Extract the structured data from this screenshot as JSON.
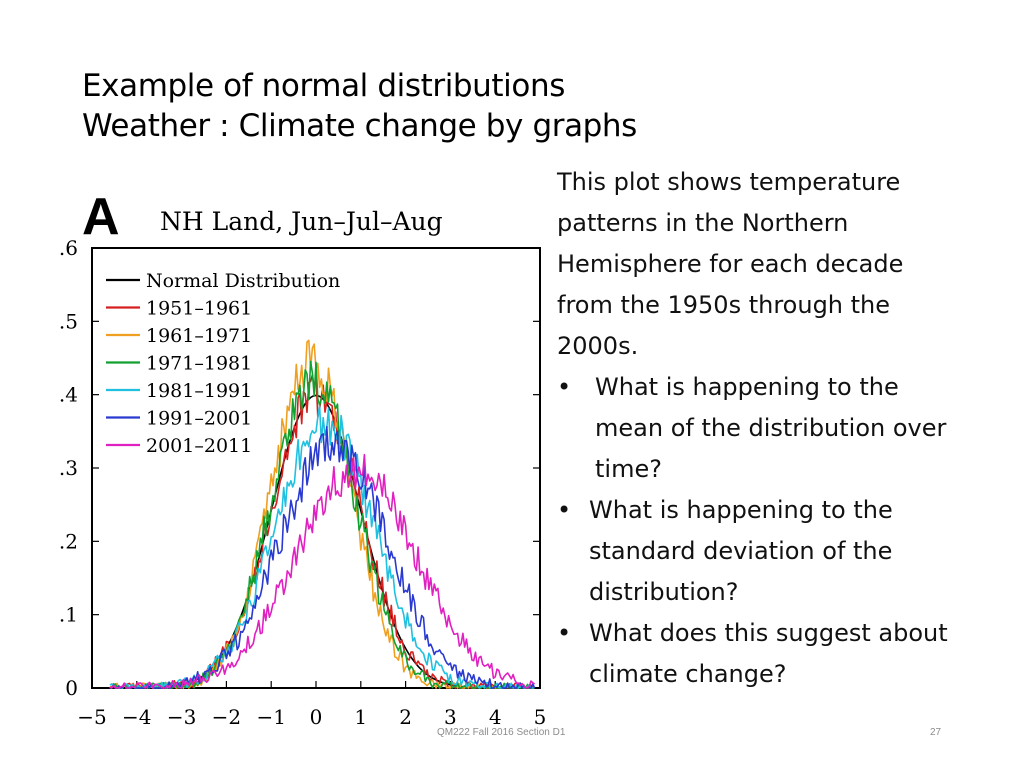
{
  "slide": {
    "title_line1": "Example of normal distributions",
    "title_line2": "Weather : Climate change by graphs",
    "paragraph": "This plot shows temperature patterns in the Northern Hemisphere for each decade from the 1950s through the 2000s.",
    "bullet_symbol": "•",
    "bullets": [
      "What is happening to the mean of the distribution over time?",
      "What is happening to the standard deviation of the distribution?",
      "What does this suggest about climate change?"
    ],
    "footer": "QM222 Fall 2016 Section D1",
    "page_number": "27"
  },
  "chart_data": {
    "type": "line",
    "panel_letter": "A",
    "title": "NH Land, Jun–Jul–Aug",
    "xlabel": "",
    "ylabel": "",
    "xlim": [
      -5,
      5
    ],
    "ylim": [
      0,
      0.6
    ],
    "x_ticks": [
      -5,
      -4,
      -3,
      -2,
      -1,
      0,
      1,
      2,
      3,
      4,
      5
    ],
    "x_tick_labels": [
      "−5",
      "−4",
      "−3",
      "−2",
      "−1",
      "0",
      "1",
      "2",
      "3",
      "4",
      "5"
    ],
    "y_ticks": [
      0,
      0.1,
      0.2,
      0.3,
      0.4,
      0.5,
      0.6
    ],
    "y_tick_labels": [
      "0",
      ".1",
      ".2",
      ".3",
      ".4",
      ".5",
      ".6"
    ],
    "grid": false,
    "legend_position": "top-left",
    "series": [
      {
        "name": "Normal Distribution",
        "color": "#000000",
        "mean": 0.0,
        "sd": 1.0,
        "noise": 0.0,
        "values": [
          [
            -4.5,
            0.0
          ],
          [
            -4.0,
            0.0
          ],
          [
            -3.5,
            0.0
          ],
          [
            -3.0,
            0.0
          ],
          [
            -2.5,
            0.02
          ],
          [
            -2.0,
            0.05
          ],
          [
            -1.5,
            0.13
          ],
          [
            -1.0,
            0.24
          ],
          [
            -0.5,
            0.35
          ],
          [
            0.0,
            0.4
          ],
          [
            0.5,
            0.35
          ],
          [
            1.0,
            0.24
          ],
          [
            1.5,
            0.13
          ],
          [
            2.0,
            0.05
          ],
          [
            2.5,
            0.02
          ],
          [
            3.0,
            0.0
          ],
          [
            3.5,
            0.0
          ],
          [
            4.0,
            0.0
          ],
          [
            4.5,
            0.0
          ]
        ]
      },
      {
        "name": "1951–1961",
        "color": "#d62020",
        "mean": 0.0,
        "sd": 1.0,
        "noise": 0.03,
        "values": [
          [
            -4.5,
            0.0
          ],
          [
            -4.0,
            0.0
          ],
          [
            -3.5,
            0.0
          ],
          [
            -3.0,
            0.01
          ],
          [
            -2.5,
            0.02
          ],
          [
            -2.0,
            0.06
          ],
          [
            -1.5,
            0.13
          ],
          [
            -1.0,
            0.25
          ],
          [
            -0.5,
            0.34
          ],
          [
            0.0,
            0.42
          ],
          [
            0.5,
            0.34
          ],
          [
            1.0,
            0.23
          ],
          [
            1.5,
            0.13
          ],
          [
            2.0,
            0.05
          ],
          [
            2.5,
            0.02
          ],
          [
            3.0,
            0.0
          ],
          [
            3.5,
            0.0
          ],
          [
            4.0,
            0.0
          ],
          [
            4.5,
            0.0
          ]
        ]
      },
      {
        "name": "1961–1971",
        "color": "#f0a020",
        "mean": -0.1,
        "sd": 0.9,
        "noise": 0.03,
        "values": [
          [
            -4.5,
            0.0
          ],
          [
            -4.0,
            0.0
          ],
          [
            -3.5,
            0.0
          ],
          [
            -3.0,
            0.0
          ],
          [
            -2.5,
            0.01
          ],
          [
            -2.0,
            0.05
          ],
          [
            -1.5,
            0.15
          ],
          [
            -1.0,
            0.27
          ],
          [
            -0.5,
            0.41
          ],
          [
            0.0,
            0.44
          ],
          [
            0.5,
            0.34
          ],
          [
            1.0,
            0.2
          ],
          [
            1.5,
            0.09
          ],
          [
            2.0,
            0.03
          ],
          [
            2.5,
            0.01
          ],
          [
            3.0,
            0.0
          ],
          [
            3.5,
            0.0
          ],
          [
            4.0,
            0.0
          ],
          [
            4.5,
            0.0
          ]
        ]
      },
      {
        "name": "1971–1981",
        "color": "#12a030",
        "mean": -0.05,
        "sd": 0.95,
        "noise": 0.03,
        "values": [
          [
            -4.5,
            0.0
          ],
          [
            -4.0,
            0.0
          ],
          [
            -3.5,
            0.0
          ],
          [
            -3.0,
            0.0
          ],
          [
            -2.5,
            0.02
          ],
          [
            -2.0,
            0.06
          ],
          [
            -1.5,
            0.15
          ],
          [
            -1.0,
            0.27
          ],
          [
            -0.5,
            0.37
          ],
          [
            0.0,
            0.42
          ],
          [
            0.5,
            0.34
          ],
          [
            1.0,
            0.22
          ],
          [
            1.5,
            0.11
          ],
          [
            2.0,
            0.04
          ],
          [
            2.5,
            0.01
          ],
          [
            3.0,
            0.0
          ],
          [
            3.5,
            0.0
          ],
          [
            4.0,
            0.0
          ],
          [
            4.5,
            0.0
          ]
        ]
      },
      {
        "name": "1981–1991",
        "color": "#20c0e0",
        "mean": 0.2,
        "sd": 1.1,
        "noise": 0.03,
        "values": [
          [
            -4.5,
            0.0
          ],
          [
            -4.0,
            0.0
          ],
          [
            -3.5,
            0.0
          ],
          [
            -3.0,
            0.01
          ],
          [
            -2.5,
            0.02
          ],
          [
            -2.0,
            0.05
          ],
          [
            -1.5,
            0.11
          ],
          [
            -1.0,
            0.2
          ],
          [
            -0.5,
            0.3
          ],
          [
            0.0,
            0.36
          ],
          [
            0.5,
            0.35
          ],
          [
            1.0,
            0.27
          ],
          [
            1.5,
            0.17
          ],
          [
            2.0,
            0.09
          ],
          [
            2.5,
            0.04
          ],
          [
            3.0,
            0.01
          ],
          [
            3.5,
            0.0
          ],
          [
            4.0,
            0.0
          ],
          [
            4.5,
            0.0
          ]
        ]
      },
      {
        "name": "1991–2001",
        "color": "#2a3ad0",
        "mean": 0.4,
        "sd": 1.2,
        "noise": 0.03,
        "values": [
          [
            -4.5,
            0.0
          ],
          [
            -4.0,
            0.0
          ],
          [
            -3.5,
            0.0
          ],
          [
            -3.0,
            0.01
          ],
          [
            -2.5,
            0.02
          ],
          [
            -2.0,
            0.04
          ],
          [
            -1.5,
            0.08
          ],
          [
            -1.0,
            0.16
          ],
          [
            -0.5,
            0.25
          ],
          [
            0.0,
            0.32
          ],
          [
            0.5,
            0.34
          ],
          [
            1.0,
            0.3
          ],
          [
            1.5,
            0.22
          ],
          [
            2.0,
            0.14
          ],
          [
            2.5,
            0.07
          ],
          [
            3.0,
            0.03
          ],
          [
            3.5,
            0.01
          ],
          [
            4.0,
            0.0
          ],
          [
            4.5,
            0.0
          ]
        ]
      },
      {
        "name": "2001–2011",
        "color": "#e020c0",
        "mean": 0.9,
        "sd": 1.35,
        "noise": 0.03,
        "values": [
          [
            -4.5,
            0.0
          ],
          [
            -4.0,
            0.0
          ],
          [
            -3.5,
            0.01
          ],
          [
            -3.0,
            0.01
          ],
          [
            -2.5,
            0.02
          ],
          [
            -2.0,
            0.03
          ],
          [
            -1.5,
            0.06
          ],
          [
            -1.0,
            0.11
          ],
          [
            -0.5,
            0.17
          ],
          [
            0.0,
            0.23
          ],
          [
            0.5,
            0.28
          ],
          [
            1.0,
            0.33
          ],
          [
            1.5,
            0.28
          ],
          [
            2.0,
            0.22
          ],
          [
            2.5,
            0.15
          ],
          [
            3.0,
            0.09
          ],
          [
            3.5,
            0.05
          ],
          [
            4.0,
            0.02
          ],
          [
            4.5,
            0.01
          ]
        ]
      }
    ]
  }
}
